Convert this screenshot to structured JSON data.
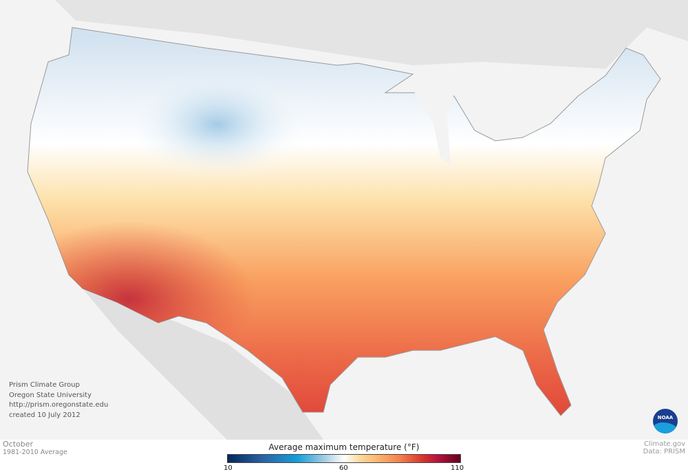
{
  "credits": [
    "Prism Climate Group",
    "Oregon State University",
    "http://prism.oregonstate.edu",
    "created 10 July 2012"
  ],
  "period": {
    "month": "October",
    "average": "1981-2010 Average"
  },
  "legend": {
    "title": "Average maximum temperature (°F)",
    "min": "10",
    "mid": "60",
    "max": "110",
    "colors": [
      "#03285a",
      "#2a63a6",
      "#14a0d8",
      "#ffffff",
      "#fdd99a",
      "#f4814e",
      "#d8332c",
      "#b8143f",
      "#66001f"
    ]
  },
  "source": {
    "site": "Climate.gov",
    "data": "Data: PRISM"
  },
  "logo": {
    "text": "NOAA"
  }
}
